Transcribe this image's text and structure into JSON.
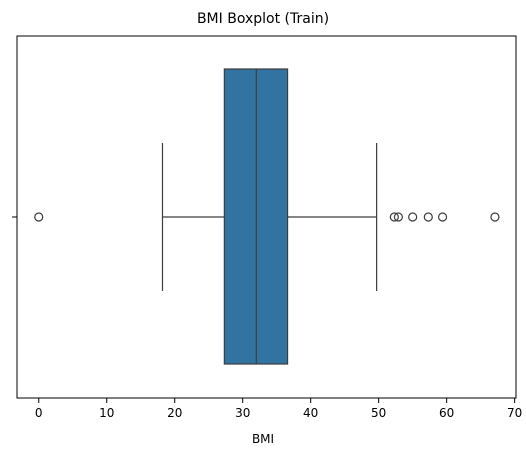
{
  "chart_data": {
    "type": "boxplot",
    "title": "BMI Boxplot (Train)",
    "xlabel": "BMI",
    "ylabel": "",
    "xlim": [
      -3.2,
      70.2
    ],
    "x_ticks": [
      0,
      10,
      20,
      30,
      40,
      50,
      60,
      70
    ],
    "x_tick_labels": [
      "0",
      "10",
      "20",
      "30",
      "40",
      "50",
      "60",
      "70"
    ],
    "grid": false,
    "box": {
      "whisker_low": 18.2,
      "q1": 27.3,
      "median": 32.0,
      "q3": 36.6,
      "whisker_high": 49.7
    },
    "outliers": [
      0,
      52.3,
      52.9,
      55.0,
      57.3,
      59.4,
      67.1
    ],
    "colors": {
      "box_fill": "#3274a1",
      "lines": "#3d3d3d",
      "axis": "#000000"
    }
  }
}
